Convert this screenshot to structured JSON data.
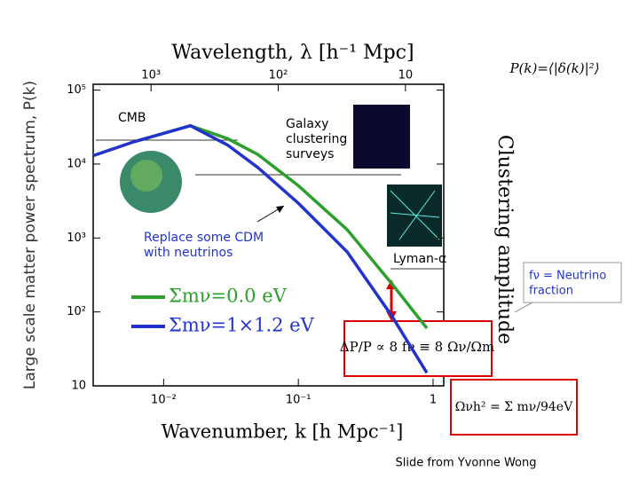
{
  "chart_data": {
    "type": "line",
    "title": "Wavelength, λ [h⁻¹ Mpc]",
    "x_label": "Wavenumber, k [h Mpc⁻¹]",
    "y_label": "Large scale matter power spectrum, P(k)",
    "right_label": "Clustering amplitude",
    "x": [
      0.003,
      0.006,
      0.0158,
      0.03,
      0.05,
      0.1,
      0.23,
      0.49,
      0.9
    ],
    "series": [
      {
        "name": "Σmν=0.0 eV",
        "color": "#2ca02c",
        "values": [
          null,
          20000,
          33000,
          22000,
          13500,
          5100,
          1300,
          245,
          60
        ]
      },
      {
        "name": "Σmν=1×1.2 eV",
        "color": "#2233cc",
        "values": [
          13000,
          20000,
          33000,
          18000,
          9000,
          2950,
          650,
          90,
          15
        ]
      }
    ],
    "xscale": "log",
    "yscale": "log",
    "xlim": [
      0.003,
      1.2
    ],
    "ylim": [
      10,
      120000
    ],
    "xticks": [
      {
        "value": 0.01,
        "label": "10⁻²"
      },
      {
        "value": 0.1,
        "label": "10⁻¹"
      },
      1
    ],
    "yticks": [
      10,
      {
        "value": 100,
        "label": "10²"
      },
      {
        "value": 1000,
        "label": "10³"
      },
      {
        "value": 10000,
        "label": "10⁴"
      },
      {
        "value": 100000,
        "label": "10⁵"
      }
    ],
    "x2lim": [
      2850,
      5
    ],
    "x2ticks": [
      {
        "value": 1000,
        "label": "10³"
      },
      {
        "value": 100,
        "label": "10²"
      },
      10
    ],
    "annotations": [
      {
        "lines": [
          "CMB"
        ]
      },
      {
        "lines": [
          "Galaxy",
          "clustering",
          "surveys"
        ]
      },
      {
        "lines": [
          "Replace some CDM",
          "with neutrinos"
        ]
      },
      {
        "lines": [
          "Lyman-α"
        ]
      },
      {
        "lines": [
          "fν = Neutrino",
          "fraction"
        ]
      }
    ]
  },
  "formulas": [
    "P(k)=⟨|δ(k)|²⟩",
    "ΔP/P ∝ 8 fν ≡ 8 Ων/Ωm",
    "Ωνh² = Σ mν/94eV"
  ],
  "footer": "Slide from Yvonne Wong"
}
